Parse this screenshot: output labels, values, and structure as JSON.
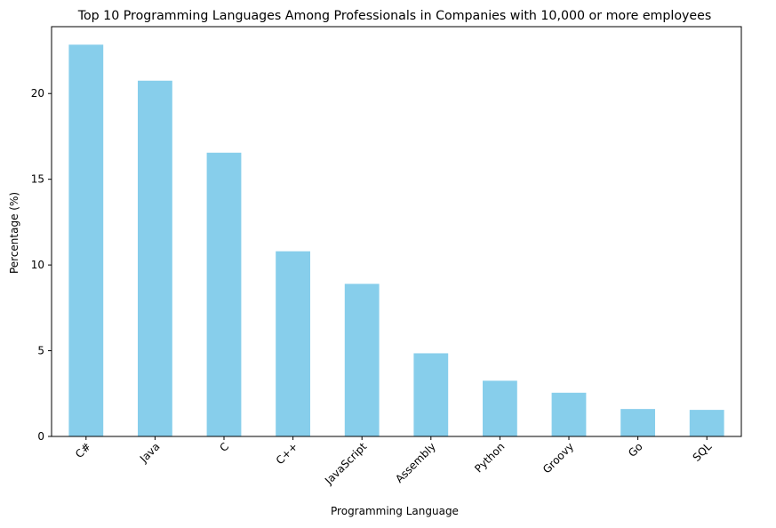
{
  "chart_data": {
    "type": "bar",
    "title": "Top 10 Programming Languages Among Professionals in Companies with 10,000 or more employees",
    "xlabel": "Programming Language",
    "ylabel": "Percentage (%)",
    "categories": [
      "C#",
      "Java",
      "C",
      "C++",
      "JavaScript",
      "Assembly",
      "Python",
      "Groovy",
      "Go",
      "SQL"
    ],
    "values": [
      22.85,
      20.75,
      16.55,
      10.8,
      8.9,
      4.85,
      3.25,
      2.55,
      1.6,
      1.55
    ],
    "ylim": [
      0,
      23.9
    ],
    "yticks": [
      0,
      5,
      10,
      15,
      20
    ],
    "grid": false,
    "colors": {
      "bar": "#87ceeb",
      "axis": "#000000"
    }
  }
}
